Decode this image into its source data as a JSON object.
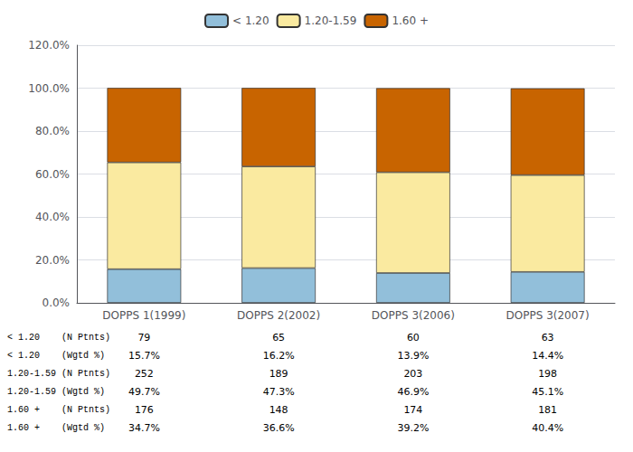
{
  "chart_data": {
    "type": "bar",
    "stacked": true,
    "categories": [
      "DOPPS 1(1999)",
      "DOPPS 2(2002)",
      "DOPPS 3(2006)",
      "DOPPS 3(2007)"
    ],
    "series": [
      {
        "name": "< 1.20",
        "color": "#92BFDA",
        "values": [
          15.7,
          16.2,
          13.9,
          14.4
        ]
      },
      {
        "name": "1.20-1.59",
        "color": "#FAEAA0",
        "values": [
          49.7,
          47.3,
          46.9,
          45.1
        ]
      },
      {
        "name": "1.60 +",
        "color": "#C86400",
        "values": [
          34.7,
          36.6,
          39.2,
          40.4
        ]
      }
    ],
    "ylim": [
      0,
      120
    ],
    "yticks": [
      {
        "value": 0,
        "label": "0.0%"
      },
      {
        "value": 20,
        "label": "20.0%"
      },
      {
        "value": 40,
        "label": "40.0%"
      },
      {
        "value": 60,
        "label": "60.0%"
      },
      {
        "value": 80,
        "label": "80.0%"
      },
      {
        "value": 100,
        "label": "100.0%"
      },
      {
        "value": 120,
        "label": "120.0%"
      }
    ],
    "grid": true,
    "legend": "top",
    "table": {
      "row_labels": [
        "< 1.20    (N Ptnts)",
        "< 1.20    (Wgtd %)",
        "1.20-1.59 (N Ptnts)",
        "1.20-1.59 (Wgtd %)",
        "1.60 +    (N Ptnts)",
        "1.60 +    (Wgtd %)"
      ],
      "values": [
        [
          "79",
          "65",
          "60",
          "63"
        ],
        [
          "15.7%",
          "16.2%",
          "13.9%",
          "14.4%"
        ],
        [
          "252",
          "189",
          "203",
          "198"
        ],
        [
          "49.7%",
          "47.3%",
          "46.9%",
          "45.1%"
        ],
        [
          "176",
          "148",
          "174",
          "181"
        ],
        [
          "34.7%",
          "36.6%",
          "39.2%",
          "40.4%"
        ]
      ]
    }
  }
}
